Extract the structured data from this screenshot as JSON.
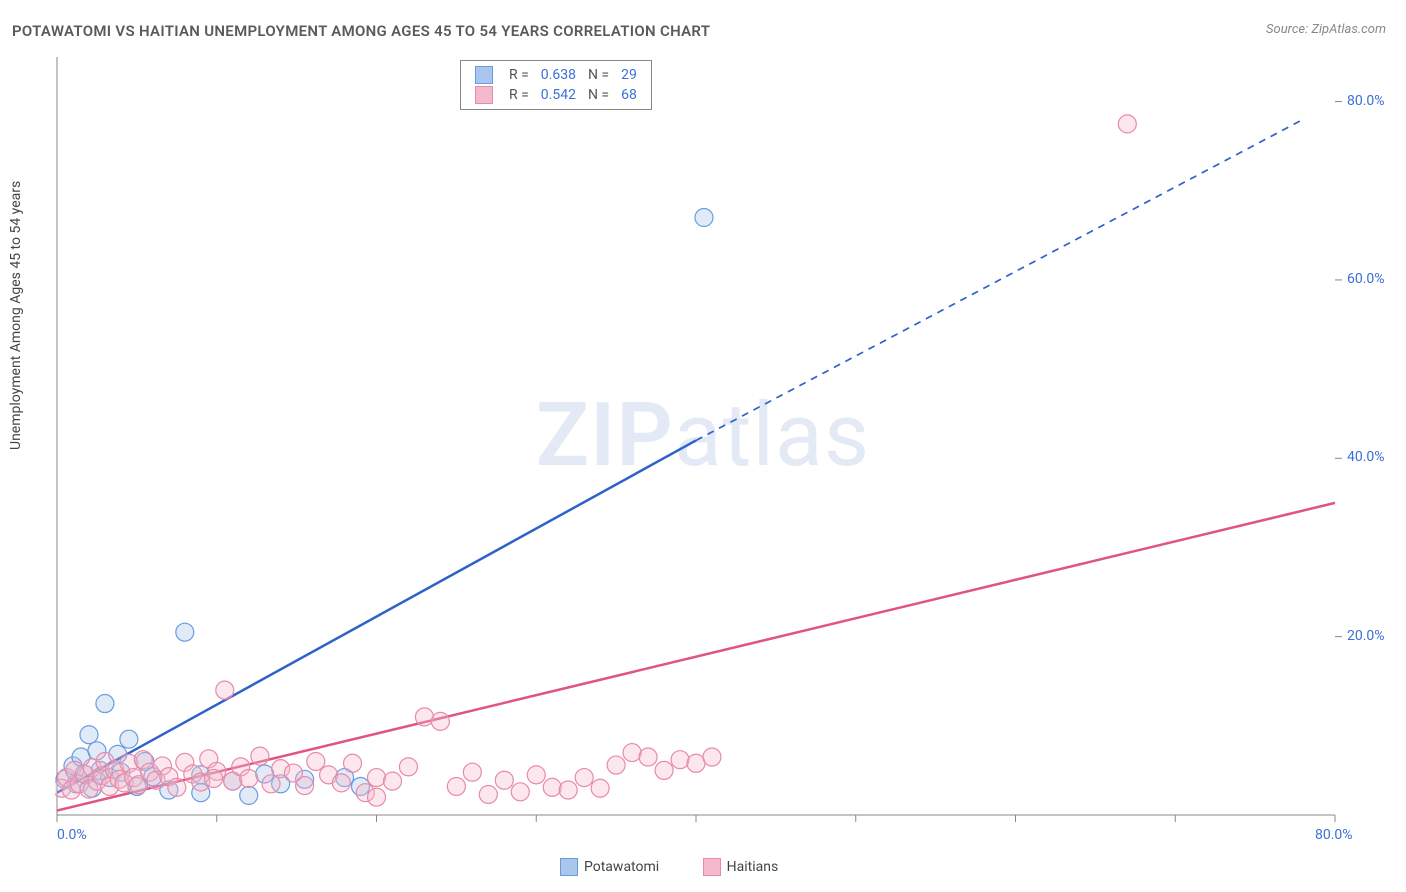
{
  "title": "POTAWATOMI VS HAITIAN UNEMPLOYMENT AMONG AGES 45 TO 54 YEARS CORRELATION CHART",
  "source_prefix": "Source: ",
  "source_name": "ZipAtlas.com",
  "yaxis_label": "Unemployment Among Ages 45 to 54 years",
  "watermark_zip": "ZIP",
  "watermark_atlas": "atlas",
  "chart": {
    "type": "scatter-with-regression",
    "xlim": [
      0,
      80
    ],
    "ylim": [
      0,
      85
    ],
    "xtick_positions": [
      0,
      10,
      20,
      30,
      40,
      50,
      60,
      70,
      80
    ],
    "xtick_labels_shown": {
      "0": "0.0%",
      "80": "80.0%"
    },
    "ytick_positions": [
      20,
      40,
      60,
      80
    ],
    "ytick_labels": {
      "20": "20.0%",
      "40": "40.0%",
      "60": "60.0%",
      "80": "80.0%"
    },
    "axis_color": "#888888",
    "tick_color": "#888888",
    "tick_label_color": "#3b6fd6",
    "background_color": "#ffffff",
    "marker_radius": 9,
    "marker_stroke_width": 1.2,
    "marker_fill_opacity": 0.35,
    "series": [
      {
        "name": "Potawatomi",
        "color_stroke": "#6a9be0",
        "color_fill": "#a9c6ec",
        "regression": {
          "solid_from": [
            0,
            2.5
          ],
          "solid_to": [
            40,
            42
          ],
          "dashed_to": [
            78,
            78
          ],
          "line_color": "#2f62c9",
          "line_width": 2.5,
          "dash": "7,6"
        },
        "R": 0.638,
        "N": 29,
        "points": [
          [
            0.5,
            4
          ],
          [
            1,
            5.5
          ],
          [
            1.2,
            3.5
          ],
          [
            1.5,
            6.5
          ],
          [
            1.8,
            4.5
          ],
          [
            2,
            9
          ],
          [
            2.2,
            3
          ],
          [
            2.5,
            7.2
          ],
          [
            2.7,
            5
          ],
          [
            3,
            12.5
          ],
          [
            3.3,
            4.2
          ],
          [
            3.8,
            6.8
          ],
          [
            4,
            4.8
          ],
          [
            4.5,
            8.5
          ],
          [
            5,
            3.2
          ],
          [
            5.5,
            6
          ],
          [
            6,
            4.3
          ],
          [
            7,
            2.8
          ],
          [
            8,
            20.5
          ],
          [
            9,
            2.5
          ],
          [
            9,
            4.5
          ],
          [
            11,
            3.8
          ],
          [
            12,
            2.2
          ],
          [
            13,
            4.6
          ],
          [
            14,
            3.5
          ],
          [
            15.5,
            4
          ],
          [
            18,
            4.2
          ],
          [
            19,
            3.2
          ],
          [
            40.5,
            67
          ]
        ]
      },
      {
        "name": "Haitians",
        "color_stroke": "#e88aa8",
        "color_fill": "#f4b9cc",
        "regression": {
          "solid_from": [
            0,
            0.5
          ],
          "solid_to": [
            80,
            35
          ],
          "line_color": "#e0547e",
          "line_width": 2.5
        },
        "R": 0.542,
        "N": 68,
        "points": [
          [
            0.3,
            3
          ],
          [
            0.6,
            4.2
          ],
          [
            0.9,
            2.8
          ],
          [
            1.1,
            5
          ],
          [
            1.4,
            3.5
          ],
          [
            1.7,
            4.6
          ],
          [
            2,
            2.9
          ],
          [
            2.2,
            5.3
          ],
          [
            2.5,
            3.8
          ],
          [
            2.8,
            4.4
          ],
          [
            3,
            6
          ],
          [
            3.3,
            3.2
          ],
          [
            3.6,
            5.1
          ],
          [
            3.9,
            4
          ],
          [
            4.2,
            3.6
          ],
          [
            4.5,
            5.8
          ],
          [
            4.8,
            4.2
          ],
          [
            5.1,
            3.4
          ],
          [
            5.4,
            6.2
          ],
          [
            5.8,
            4.8
          ],
          [
            6.2,
            3.9
          ],
          [
            6.6,
            5.5
          ],
          [
            7,
            4.3
          ],
          [
            7.5,
            3.1
          ],
          [
            8,
            5.9
          ],
          [
            8.5,
            4.6
          ],
          [
            9,
            3.7
          ],
          [
            9.5,
            6.3
          ],
          [
            10,
            4.9
          ],
          [
            10.5,
            14
          ],
          [
            11,
            3.8
          ],
          [
            11.5,
            5.4
          ],
          [
            12,
            4.1
          ],
          [
            12.7,
            6.6
          ],
          [
            13.4,
            3.5
          ],
          [
            14,
            5.2
          ],
          [
            14.8,
            4.7
          ],
          [
            15.5,
            3.3
          ],
          [
            16.2,
            6
          ],
          [
            17,
            4.5
          ],
          [
            17.8,
            3.6
          ],
          [
            18.5,
            5.8
          ],
          [
            19.3,
            2.5
          ],
          [
            20,
            4.2
          ],
          [
            20,
            2
          ],
          [
            21,
            3.8
          ],
          [
            22,
            5.4
          ],
          [
            23,
            11
          ],
          [
            24,
            10.5
          ],
          [
            25,
            3.2
          ],
          [
            26,
            4.8
          ],
          [
            27,
            2.3
          ],
          [
            28,
            3.9
          ],
          [
            29,
            2.6
          ],
          [
            30,
            4.5
          ],
          [
            31,
            3.1
          ],
          [
            32,
            2.8
          ],
          [
            33,
            4.2
          ],
          [
            34,
            3
          ],
          [
            35,
            5.6
          ],
          [
            36,
            7
          ],
          [
            37,
            6.5
          ],
          [
            38,
            5
          ],
          [
            39,
            6.2
          ],
          [
            40,
            5.8
          ],
          [
            41,
            6.5
          ],
          [
            67,
            77.5
          ],
          [
            9.8,
            4.1
          ]
        ]
      }
    ]
  },
  "legend_top": {
    "R_label": "R =",
    "N_label": "N ="
  },
  "legend_bottom": {
    "items": [
      "Potawatomi",
      "Haitians"
    ]
  }
}
